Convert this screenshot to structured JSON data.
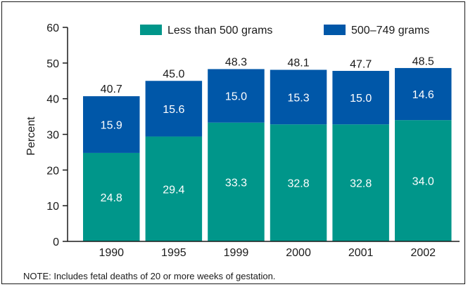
{
  "chart_data": {
    "type": "bar",
    "stacked": true,
    "title": "",
    "xlabel": "",
    "ylabel": "Percent",
    "ylim": [
      0,
      60
    ],
    "yticks": [
      0,
      10,
      20,
      30,
      40,
      50,
      60
    ],
    "grid": false,
    "legend_position": "top",
    "categories": [
      "1990",
      "1995",
      "1999",
      "2000",
      "2001",
      "2002"
    ],
    "series": [
      {
        "name": "Less than 500 grams",
        "color": "#00968a",
        "values": [
          24.8,
          29.4,
          33.3,
          32.8,
          32.8,
          34.0
        ]
      },
      {
        "name": "500–749 grams",
        "color": "#0057a8",
        "values": [
          15.9,
          15.6,
          15.0,
          15.3,
          15.0,
          14.6
        ]
      }
    ],
    "totals": [
      40.7,
      45.0,
      48.3,
      48.1,
      47.7,
      48.5
    ],
    "total_labels": [
      "40.7",
      "45.0",
      "48.3",
      "48.1",
      "47.7",
      "48.5"
    ],
    "segment_labels": [
      [
        "24.8",
        "29.4",
        "33.3",
        "32.8",
        "32.8",
        "34.0"
      ],
      [
        "15.9",
        "15.6",
        "15.0",
        "15.3",
        "15.0",
        "14.6"
      ]
    ]
  },
  "note": "NOTE:  Includes fetal deaths of 20 or more weeks of gestation."
}
